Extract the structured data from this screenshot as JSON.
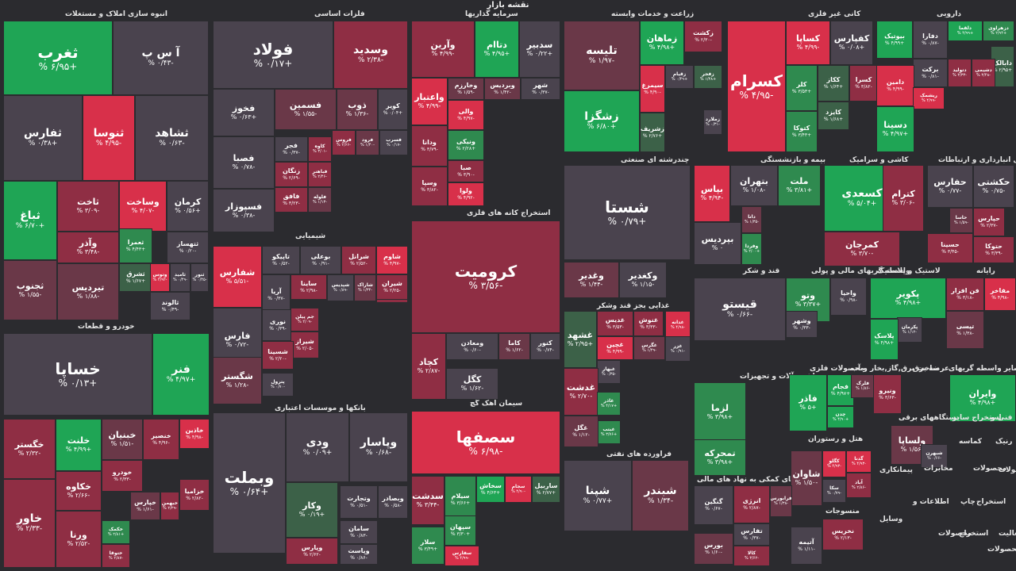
{
  "page": {
    "title": "نقشه بازار"
  },
  "colors": {
    "pos3": "#1fa555",
    "pos2": "#2f8a4f",
    "pos1": "#3c6148",
    "neu": "#4a434e",
    "neg1": "#6a3848",
    "neg2": "#8f2e44",
    "neg3": "#d8304a"
  },
  "sections": [
    {
      "label": "انبوه سازی املاک و مستغلات"
    },
    {
      "label": "فلزات اساسی"
    },
    {
      "label": "سرمایه گذاریها"
    },
    {
      "label": "زراعت و خدمات وابسته"
    },
    {
      "label": "کانی غیر فلزی"
    },
    {
      "label": "دارویی"
    },
    {
      "label": "شیمیایی"
    },
    {
      "label": "استخراج کانه های فلزی"
    },
    {
      "label": "چندرشته ای صنعتی"
    },
    {
      "label": "بیمه و بازنشستگی"
    },
    {
      "label": "کاشی و سرامیک"
    },
    {
      "label": "حمل و نقل انبارداری و ارتباطات"
    },
    {
      "label": "خودرو و قطعات"
    },
    {
      "label": "بانکها و موسسات اعتباری"
    },
    {
      "label": "سیمان آهک گچ"
    },
    {
      "label": "غذایی بجز قند وشکر"
    },
    {
      "label": "قند و شکر"
    },
    {
      "label": "واسطه گریهای مالی و پولی"
    },
    {
      "label": "لاستیک و پلاستیک"
    },
    {
      "label": "رایانه"
    },
    {
      "label": "ماشین آلات و تجهیزات"
    },
    {
      "label": "محصولات فلزی"
    },
    {
      "label": "ساخت برق,گاز,بخار و آب"
    },
    {
      "label": "عرضه برق"
    },
    {
      "label": "سایر واسطه گریهای"
    },
    {
      "label": "فراورده های نفتی"
    },
    {
      "label": "هتل و رستوران"
    },
    {
      "label": "فعالیتهای کمکی به نهاد های مالی"
    },
    {
      "label": "منسوجات"
    }
  ],
  "tiles": [
    {
      "name": "ثغرب",
      "change": "+۶/۹۵ %",
      "tone": "pos3"
    },
    {
      "name": "آ س پ",
      "change": "-۰/۴۳ %",
      "tone": "neu"
    },
    {
      "name": "ثفارس",
      "change": "+۰/۳۸ %",
      "tone": "neu"
    },
    {
      "name": "ثنوسا",
      "change": "-۴/۹۵ %",
      "tone": "neg3"
    },
    {
      "name": "ثشاهد",
      "change": "-۰/۶۳ %",
      "tone": "neu"
    },
    {
      "name": "ثباغ",
      "change": "+۶/۷۰ %",
      "tone": "pos3"
    },
    {
      "name": "ثاخت",
      "change": "-۳/۰۹ %",
      "tone": "neg2"
    },
    {
      "name": "وساخت",
      "change": "-۴/۰۷ %",
      "tone": "neg3"
    },
    {
      "name": "کرمان",
      "change": "+۰/۵۶ %",
      "tone": "neu"
    },
    {
      "name": "وآذر",
      "change": "-۳/۴۸ %",
      "tone": "neg2"
    },
    {
      "name": "ثعمرا",
      "change": "+۴/۴۳ %",
      "tone": "pos2"
    },
    {
      "name": "ثتهساز",
      "change": "-۰/۲۰ %",
      "tone": "neu"
    },
    {
      "name": "ثجنوب",
      "change": "-۱/۵۵ %",
      "tone": "neg1"
    },
    {
      "name": "تیردیس",
      "change": "-۱/۸۸ %",
      "tone": "neg1"
    },
    {
      "name": "ثشرق",
      "change": "+۱/۶۷ %",
      "tone": "pos1"
    },
    {
      "name": "وتوس",
      "change": "-۴/۹۲ %",
      "tone": "neg3"
    },
    {
      "name": "ثامید",
      "change": "-۰/۴۹ %",
      "tone": "neu"
    },
    {
      "name": "ثنور",
      "change": "-۰/۴۵ %",
      "tone": "neu"
    },
    {
      "name": "ثالوند",
      "change": "-۰/۴۹ %",
      "tone": "neu"
    },
    {
      "name": "فولاد",
      "change": "+۰/۱۷ %",
      "tone": "neu"
    },
    {
      "name": "وسدید",
      "change": "-۲/۳۸ %",
      "tone": "neg2"
    },
    {
      "name": "فخوز",
      "change": "+۰/۶۳ %",
      "tone": "neu"
    },
    {
      "name": "فسمین",
      "change": "-۱/۵۵ %",
      "tone": "neg1"
    },
    {
      "name": "ذوب",
      "change": "-۱/۳۶ %",
      "tone": "neg1"
    },
    {
      "name": "کویر",
      "change": "+۰/۰۴ %",
      "tone": "neu"
    },
    {
      "name": "فصبا",
      "change": "-۰/۷۸ %",
      "tone": "neu"
    },
    {
      "name": "فجر",
      "change": "-۰/۳۷ %",
      "tone": "neu"
    },
    {
      "name": "کاوه",
      "change": "-۳/۰۱ %",
      "tone": "neg2"
    },
    {
      "name": "فروس",
      "change": "-۲/۶۶ %",
      "tone": "neg2"
    },
    {
      "name": "فرود",
      "change": "-۱/۴۰ %",
      "tone": "neg1"
    },
    {
      "name": "فسرب",
      "change": "-۰/۱۷ %",
      "tone": "neu"
    },
    {
      "name": "زنگان",
      "change": "-۲/۶۹ %",
      "tone": "neg2"
    },
    {
      "name": "فباهنر",
      "change": "-۲/۴۶ %",
      "tone": "neg2"
    },
    {
      "name": "فسپوزار",
      "change": "-۰/۳۸ %",
      "tone": "neu"
    },
    {
      "name": "فلوله",
      "change": "-۱/۱۳ %",
      "tone": "neg1"
    },
    {
      "name": "فافق",
      "change": "-۳/۲۳ %",
      "tone": "neg2"
    },
    {
      "name": "وآرین",
      "change": "-۴/۹۹ %",
      "tone": "neg2"
    },
    {
      "name": "دتاام",
      "change": "+۴/۹۵ %",
      "tone": "pos3"
    },
    {
      "name": "سدبیر",
      "change": "+۰/۲۲ %",
      "tone": "neu"
    },
    {
      "name": "واعتبار",
      "change": "-۴/۹۹ %",
      "tone": "neg3"
    },
    {
      "name": "وخارزم",
      "change": "-۱/۵۹ %",
      "tone": "neg1"
    },
    {
      "name": "وبرديس",
      "change": "-۱/۴۲ %",
      "tone": "neg1"
    },
    {
      "name": "شهر",
      "change": "-۰/۳۷ %",
      "tone": "neu"
    },
    {
      "name": "والی",
      "change": "-۴/۹۷ %",
      "tone": "neg3"
    },
    {
      "name": "ونیکی",
      "change": "+۲/۲۸ %",
      "tone": "pos2"
    },
    {
      "name": "ودانا",
      "change": "-۳/۷۹ %",
      "tone": "neg2"
    },
    {
      "name": "صبا",
      "change": "-۳/۹۰ %",
      "tone": "neg2"
    },
    {
      "name": "وسپا",
      "change": "-۳/۸۲ %",
      "tone": "neg2"
    },
    {
      "name": "ولوا",
      "change": "-۴/۹۲ %",
      "tone": "neg3"
    },
    {
      "name": "تلیسه",
      "change": "-۱/۹۷ %",
      "tone": "neg1"
    },
    {
      "name": "زماهان",
      "change": "+۴/۹۸ %",
      "tone": "pos3"
    },
    {
      "name": "زکشت",
      "change": "-۲/۳۰ %",
      "tone": "neg2"
    },
    {
      "name": "زقیام",
      "change": "+۰/۴۹ %",
      "tone": "neu"
    },
    {
      "name": "زفجر",
      "change": "+۱/۳۸ %",
      "tone": "pos1"
    },
    {
      "name": "سیمرغ",
      "change": "-۴/۹۰ %",
      "tone": "neg3"
    },
    {
      "name": "زشگزا",
      "change": "+۶/۸۰ %",
      "tone": "pos3"
    },
    {
      "name": "زملارد",
      "change": "-۰/۳۱ %",
      "tone": "neu"
    },
    {
      "name": "زشریف",
      "change": "+۲/۷۶ %",
      "tone": "pos1"
    },
    {
      "name": "کسرام",
      "change": "-۴/۹۵ %",
      "tone": "neg3"
    },
    {
      "name": "کساپا",
      "change": "-۴/۹۹ %",
      "tone": "neg3"
    },
    {
      "name": "کفپارس",
      "change": "+۰/۰۸ %",
      "tone": "neu"
    },
    {
      "name": "کلر",
      "change": "+۳/۵۳ %",
      "tone": "pos2"
    },
    {
      "name": "ککاز",
      "change": "+۱/۶۴ %",
      "tone": "pos1"
    },
    {
      "name": "کسرا",
      "change": "-۳/۸۲ %",
      "tone": "neg2"
    },
    {
      "name": "کایزد",
      "change": "+۱/۶۸ %",
      "tone": "pos1"
    },
    {
      "name": "کتوکا",
      "change": "+۳/۴۳ %",
      "tone": "pos2"
    },
    {
      "name": "بیوتیک",
      "change": "+۴/۹۹ %",
      "tone": "pos3"
    },
    {
      "name": "دفارا",
      "change": "-۰/۸۷ %",
      "tone": "neu"
    },
    {
      "name": "دلقما",
      "change": "+۴/۹۹ %",
      "tone": "pos3"
    },
    {
      "name": "دزهراوی",
      "change": "+۲/۹۴ %",
      "tone": "pos2"
    },
    {
      "name": "برکت",
      "change": "-۰/۸۱ %",
      "tone": "neu"
    },
    {
      "name": "دتولید",
      "change": "-۳/۳۳ %",
      "tone": "neg2"
    },
    {
      "name": "دابالک",
      "change": "+۲/۹۵ %",
      "tone": "pos1"
    },
    {
      "name": "دشیمی",
      "change": "-۳/۴۸ %",
      "tone": "neg2"
    },
    {
      "name": "دامین",
      "change": "-۴/۹۹ %",
      "tone": "neg3"
    },
    {
      "name": "ریشمک",
      "change": "-۴/۹۹ %",
      "tone": "neg3"
    },
    {
      "name": "دسینا",
      "change": "+۴/۹۷ %",
      "tone": "pos3"
    },
    {
      "name": "شستا",
      "change": "+۰/۷۹ %",
      "tone": "neu"
    },
    {
      "name": "بپاس",
      "change": "-۴/۹۴ %",
      "tone": "neg3"
    },
    {
      "name": "بتهران",
      "change": "-۱/۰۸ %",
      "tone": "neu"
    },
    {
      "name": "ملت",
      "change": "+۳/۸۱ %",
      "tone": "pos2"
    },
    {
      "name": "بپردیس",
      "change": "۰ %",
      "tone": "neu"
    },
    {
      "name": "دانا",
      "change": "-۱/۳۵ %",
      "tone": "neg1"
    },
    {
      "name": "وفردا",
      "change": "+۲/۰۰ %",
      "tone": "pos2"
    },
    {
      "name": "کسعدی",
      "change": "+۵/۰۴ %",
      "tone": "pos3"
    },
    {
      "name": "کترام",
      "change": "-۳/۰۶ %",
      "tone": "neg2"
    },
    {
      "name": "کمرجان",
      "change": "-۳/۷۰ %",
      "tone": "neg2"
    },
    {
      "name": "حفارس",
      "change": "-۰/۷۷ %",
      "tone": "neu"
    },
    {
      "name": "حکشتی",
      "change": "-۰/۷۵ %",
      "tone": "neu"
    },
    {
      "name": "حاسا",
      "change": "-۱/۵۹ %",
      "tone": "neg1"
    },
    {
      "name": "حپارس",
      "change": "-۲/۳۷ %",
      "tone": "neg2"
    },
    {
      "name": "حسینا",
      "change": "-۳/۴۵ %",
      "tone": "neg2"
    },
    {
      "name": "حتوکا",
      "change": "-۳/۳۹ %",
      "tone": "neg2"
    },
    {
      "name": "خساپا",
      "change": "+۰/۱۳ %",
      "tone": "neu"
    },
    {
      "name": "فنر",
      "change": "+۴/۹۷ %",
      "tone": "pos3"
    },
    {
      "name": "خگستر",
      "change": "-۲/۳۲ %",
      "tone": "neg2"
    },
    {
      "name": "خلنت",
      "change": "+۴/۹۹ %",
      "tone": "pos3"
    },
    {
      "name": "خبنیان",
      "change": "-۱/۵۱ %",
      "tone": "neg1"
    },
    {
      "name": "خنصیر",
      "change": "-۴/۹۶ %",
      "tone": "neg2"
    },
    {
      "name": "خاذین",
      "change": "-۴/۹۸ %",
      "tone": "neg3"
    },
    {
      "name": "خودرو",
      "change": "-۲/۳۳ %",
      "tone": "neg2"
    },
    {
      "name": "خکاوه",
      "change": "-۲/۶۶ %",
      "tone": "neg2"
    },
    {
      "name": "خاور",
      "change": "-۲/۳۳ %",
      "tone": "neg2"
    },
    {
      "name": "ورنا",
      "change": "-۲/۵۲ %",
      "tone": "neg2"
    },
    {
      "name": "خزامیا",
      "change": "-۲/۸۲ %",
      "tone": "neg2"
    },
    {
      "name": "خکمک",
      "change": "+۲/۸۱ %",
      "tone": "pos2"
    },
    {
      "name": "خپارس",
      "change": "-۱/۶۱ %",
      "tone": "neg1"
    },
    {
      "name": "خبهمن",
      "change": "-۲/۲۹ %",
      "tone": "neg2"
    },
    {
      "name": "ختوقا",
      "change": "-۲/۸۷ %",
      "tone": "neg2"
    },
    {
      "name": "شفارس",
      "change": "-۵/۵۱ %",
      "tone": "neg3"
    },
    {
      "name": "تاپیکو",
      "change": "-۰/۵۲ %",
      "tone": "neu"
    },
    {
      "name": "بوعلی",
      "change": "-۰/۹۱ %",
      "tone": "neu"
    },
    {
      "name": "شرانل",
      "change": "-۲/۵۲ %",
      "tone": "neg2"
    },
    {
      "name": "شاوم",
      "change": "-۴/۹۷ %",
      "tone": "neg3"
    },
    {
      "name": "شپنا",
      "change": "-۳/۲۹ %",
      "tone": "neg2"
    },
    {
      "name": "آریا",
      "change": "-۰/۳۷ %",
      "tone": "neu"
    },
    {
      "name": "ساینا",
      "change": "-۲/۹۸ %",
      "tone": "neg2"
    },
    {
      "name": "شپدیس",
      "change": "-۰/۸۹ %",
      "tone": "neu"
    },
    {
      "name": "شاراک",
      "change": "-۱/۳۴ %",
      "tone": "neg1"
    },
    {
      "name": "شیران",
      "change": "-۲/۲۵ %",
      "tone": "neg2"
    },
    {
      "name": "فارس",
      "change": "-۰/۷۲ %",
      "tone": "neu"
    },
    {
      "name": "نوری",
      "change": "-۰/۳۹ %",
      "tone": "neu"
    },
    {
      "name": "جم پیلن",
      "change": "-۲/۰۹ %",
      "tone": "neg2"
    },
    {
      "name": "شیراز",
      "change": "-۲/۰۵ %",
      "tone": "neg2"
    },
    {
      "name": "شگستر",
      "change": "-۱/۲۸ %",
      "tone": "neg1"
    },
    {
      "name": "شسینا",
      "change": "-۲/۲۰ %",
      "tone": "neg2"
    },
    {
      "name": "پترول",
      "change": "-۰/۷۰ %",
      "tone": "neu"
    },
    {
      "name": "کرومیت",
      "change": "-۳/۵۶ %",
      "tone": "neg2"
    },
    {
      "name": "کچاد",
      "change": "-۲/۸۷ %",
      "tone": "neg2"
    },
    {
      "name": "ومعادن",
      "change": "-۰/۶۰ %",
      "tone": "neu"
    },
    {
      "name": "کاما",
      "change": "-۱/۶۲ %",
      "tone": "neg1"
    },
    {
      "name": "کنور",
      "change": "-۰/۷۴ %",
      "tone": "neu"
    },
    {
      "name": "کگل",
      "change": "-۱/۶۲ %",
      "tone": "neu"
    },
    {
      "name": "ودی",
      "change": "+۰/۰۹ %",
      "tone": "neu"
    },
    {
      "name": "وپاسار",
      "change": "-۰/۶۸ %",
      "tone": "neu"
    },
    {
      "name": "وبملت",
      "change": "+۰/۶۴ %",
      "tone": "neu"
    },
    {
      "name": "وکار",
      "change": "+۰/۱۹ %",
      "tone": "pos1"
    },
    {
      "name": "وتجارت",
      "change": "-۰/۵۱ %",
      "tone": "neu"
    },
    {
      "name": "وبصادر",
      "change": "-۰/۵۸ %",
      "tone": "neu"
    },
    {
      "name": "سامان",
      "change": "-۰/۸۳ %",
      "tone": "neu"
    },
    {
      "name": "وپارس",
      "change": "-۲/۶۲ %",
      "tone": "neg2"
    },
    {
      "name": "وپاست",
      "change": "-۰/۸۶ %",
      "tone": "neu"
    },
    {
      "name": "سصفها",
      "change": "-۶/۹۸ %",
      "tone": "neg3"
    },
    {
      "name": "سدشت",
      "change": "-۳/۴۴ %",
      "tone": "neg2"
    },
    {
      "name": "سیلام",
      "change": "+۳/۶۶ %",
      "tone": "pos2"
    },
    {
      "name": "سخاش",
      "change": "+۴/۶۳ %",
      "tone": "pos3"
    },
    {
      "name": "سجام",
      "change": "-۴/۹۰ %",
      "tone": "neg3"
    },
    {
      "name": "ساربیل",
      "change": "+۲/۷۷ %",
      "tone": "pos1"
    },
    {
      "name": "سپهان",
      "change": "+۳/۳۰ %",
      "tone": "pos2"
    },
    {
      "name": "سلار",
      "change": "+۳/۴۹ %",
      "tone": "pos2"
    },
    {
      "name": "سفارس",
      "change": "-۴/۹۹ %",
      "tone": "neg3"
    },
    {
      "name": "وغدیر",
      "change": "-۱/۴۴ %",
      "tone": "neg1"
    },
    {
      "name": "وکغدیر",
      "change": "-۱/۱۵ %",
      "tone": "neu"
    },
    {
      "name": "غدیس",
      "change": "-۳/۵۳ %",
      "tone": "neg2"
    },
    {
      "name": "غنوش",
      "change": "-۳/۳۳ %",
      "tone": "neg2"
    },
    {
      "name": "غدانه",
      "change": "-۴/۹۸ %",
      "tone": "neg3"
    },
    {
      "name": "غشهد",
      "change": "+۲/۹۵ %",
      "tone": "pos1"
    },
    {
      "name": "غچین",
      "change": "-۴/۹۹ %",
      "tone": "neg3"
    },
    {
      "name": "غگرس",
      "change": "-۱/۴۹ %",
      "tone": "neg1"
    },
    {
      "name": "غبهار",
      "change": "-۰/۳۵ %",
      "tone": "neu"
    },
    {
      "name": "غدشت",
      "change": "-۲/۷۰ %",
      "tone": "neg2"
    },
    {
      "name": "غاذر",
      "change": "+۴/۱۷ %",
      "tone": "pos2"
    },
    {
      "name": "غبتب",
      "change": "+۳/۷۶ %",
      "tone": "pos2"
    },
    {
      "name": "غگل",
      "change": "-۱/۱۲ %",
      "tone": "neg1"
    },
    {
      "name": "غزر",
      "change": "-۰/۹۱ %",
      "tone": "neu"
    },
    {
      "name": "قیستو",
      "change": "-۰/۶۶ %",
      "tone": "neu"
    },
    {
      "name": "وتو",
      "change": "+۳/۳۷ %",
      "tone": "pos2"
    },
    {
      "name": "واحیا",
      "change": "-۰/۹۸ %",
      "tone": "neu"
    },
    {
      "name": "وشهر",
      "change": "-۰/۳۳ %",
      "tone": "neu"
    },
    {
      "name": "پکویر",
      "change": "+۴/۹۸ %",
      "tone": "pos3"
    },
    {
      "name": "پکرمان",
      "change": "-۱/۱۲ %",
      "tone": "neu"
    },
    {
      "name": "پلاسک",
      "change": "+۴/۹۸ %",
      "tone": "pos3"
    },
    {
      "name": "مفاخر",
      "change": "-۴/۹۸ %",
      "tone": "neg3"
    },
    {
      "name": "فن افزار",
      "change": "-۳/۱۸ %",
      "tone": "neg2"
    },
    {
      "name": "سپ",
      "change": "-۱/۳۸ %",
      "tone": "neg1"
    },
    {
      "name": "تپسی",
      "change": "-۱/۳۸ %",
      "tone": "neg1"
    },
    {
      "name": "لزما",
      "change": "+۳/۹۸ %",
      "tone": "pos2"
    },
    {
      "name": "تمحرکه",
      "change": "+۳/۹۸ %",
      "tone": "pos2"
    },
    {
      "name": "فاذر",
      "change": "+۵ %",
      "tone": "pos3"
    },
    {
      "name": "فجام",
      "change": "+۴/۹۷ %",
      "tone": "pos3"
    },
    {
      "name": "فلرک",
      "change": "-۱/۸۶ %",
      "tone": "neg1"
    },
    {
      "name": "چدن",
      "change": "+۴/۹۰ %",
      "tone": "pos3"
    },
    {
      "name": "ونیرو",
      "change": "-۳/۶۳ %",
      "tone": "neg2"
    },
    {
      "name": "وایران",
      "change": "+۴/۹۸ %",
      "tone": "pos3"
    },
    {
      "name": "ولساپا",
      "change": "-۱/۵۶ %",
      "tone": "neg1"
    },
    {
      "name": "شپنا",
      "change": "+۰/۷۷ %",
      "tone": "neu"
    },
    {
      "name": "شبندر",
      "change": "-۱/۳۴ %",
      "tone": "neg1"
    },
    {
      "name": "شبهرن",
      "change": "-۰/۶۶ %",
      "tone": "neu"
    },
    {
      "name": "شاوان",
      "change": "-۱/۵۰ %",
      "tone": "neg1"
    },
    {
      "name": "کگلو",
      "change": "-۴/۹۳ %",
      "tone": "neg3"
    },
    {
      "name": "گدنا",
      "change": "-۴/۹۳ %",
      "tone": "neg3"
    },
    {
      "name": "سکا",
      "change": "-۰/۷۹ %",
      "tone": "neu"
    },
    {
      "name": "آباد",
      "change": "-۲/۸۶ %",
      "tone": "neg2"
    },
    {
      "name": "گنگین",
      "change": "-۰/۶۷ %",
      "tone": "neu"
    },
    {
      "name": "انرژی",
      "change": "-۲/۸۷ %",
      "tone": "neg2"
    },
    {
      "name": "فرابورس",
      "change": "-۱/۳۸ %",
      "tone": "neg1"
    },
    {
      "name": "تفارس",
      "change": "-۰/۳۷ %",
      "tone": "neu"
    },
    {
      "name": "بورس",
      "change": "-۱/۶۰ %",
      "tone": "neg1"
    },
    {
      "name": "کالا",
      "change": "-۳/۶۲ %",
      "tone": "neg2"
    },
    {
      "name": "آتیمه",
      "change": "-۱/۱۱ %",
      "tone": "neu"
    },
    {
      "name": "نخریس",
      "change": "-۲/۱۳ %",
      "tone": "neg2"
    },
    {
      "name": "نمرینو",
      "change": "+۳/۸۰ %",
      "tone": "pos2"
    }
  ],
  "labels": [
    {
      "text": "دستگاههای برقی"
    },
    {
      "text": "استخراج سایر"
    },
    {
      "text": "فنی و"
    },
    {
      "text": "کماسه"
    },
    {
      "text": "رنیک"
    },
    {
      "text": "پیمانکاری"
    },
    {
      "text": "مخابرات"
    },
    {
      "text": "محصولات"
    },
    {
      "text": "محصولات"
    },
    {
      "text": "اطلاعات و"
    },
    {
      "text": "چاپ"
    },
    {
      "text": "استخراج"
    },
    {
      "text": "وسایل"
    },
    {
      "text": "محصولات"
    },
    {
      "text": "استخراج"
    },
    {
      "text": "فعالیت"
    },
    {
      "text": "محصولات"
    }
  ]
}
